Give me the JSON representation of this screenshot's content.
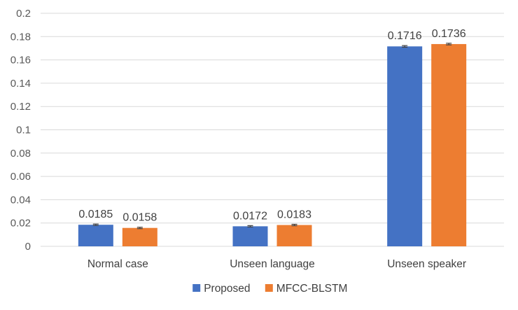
{
  "chart_data": {
    "type": "bar",
    "categories": [
      "Normal case",
      "Unseen language",
      "Unseen speaker"
    ],
    "series": [
      {
        "name": "Proposed",
        "values": [
          0.0185,
          0.0172,
          0.1716
        ],
        "error": [
          0.0006,
          0.0006,
          0.0007
        ],
        "color": "#4472C4"
      },
      {
        "name": "MFCC-BLSTM",
        "values": [
          0.0158,
          0.0183,
          0.1736
        ],
        "error": [
          0.0006,
          0.0006,
          0.0007
        ],
        "color": "#ED7D31"
      }
    ],
    "data_labels": [
      [
        "0.0185",
        "0.0172",
        "0.1716"
      ],
      [
        "0.0158",
        "0.0183",
        "0.1736"
      ]
    ],
    "y_ticks": [
      "0",
      "0.02",
      "0.04",
      "0.06",
      "0.08",
      "0.1",
      "0.12",
      "0.14",
      "0.16",
      "0.18",
      "0.2"
    ],
    "ylim": [
      0,
      0.2
    ],
    "grid": true,
    "legend_position": "bottom",
    "error_bars": true,
    "error_bar_color": "#404040",
    "gridline_color": "#D9D9D9"
  }
}
